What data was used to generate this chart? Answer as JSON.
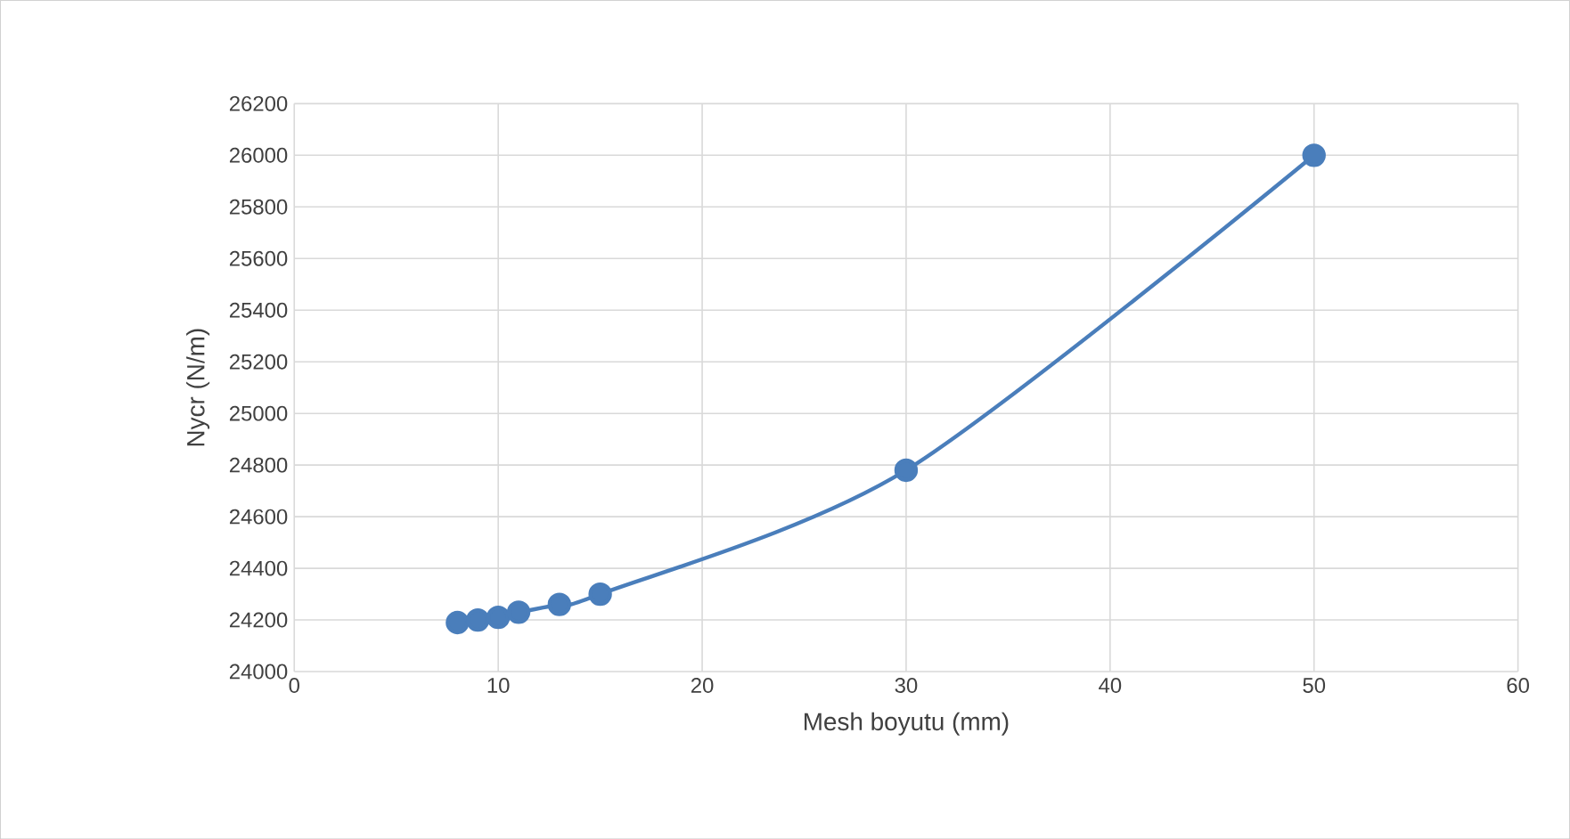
{
  "chart_data": {
    "type": "line",
    "xlabel": "Mesh boyutu (mm)",
    "ylabel": "Nycr (N/m)",
    "x": [
      8,
      9,
      10,
      11,
      13,
      15,
      30,
      50
    ],
    "series": [
      {
        "color": "#4a7ebb",
        "values": [
          24190,
          24200,
          24210,
          24230,
          24260,
          24300,
          24780,
          26000
        ]
      }
    ],
    "xlim": [
      0,
      60
    ],
    "xticks": [
      0,
      10,
      20,
      30,
      40,
      50,
      60
    ],
    "ylim": [
      24000,
      26200
    ],
    "yticks": [
      24000,
      24200,
      24400,
      24600,
      24800,
      25000,
      25200,
      25400,
      25600,
      25800,
      26000,
      26200
    ],
    "grid": true,
    "marker": "circle",
    "line_style": "solid"
  }
}
